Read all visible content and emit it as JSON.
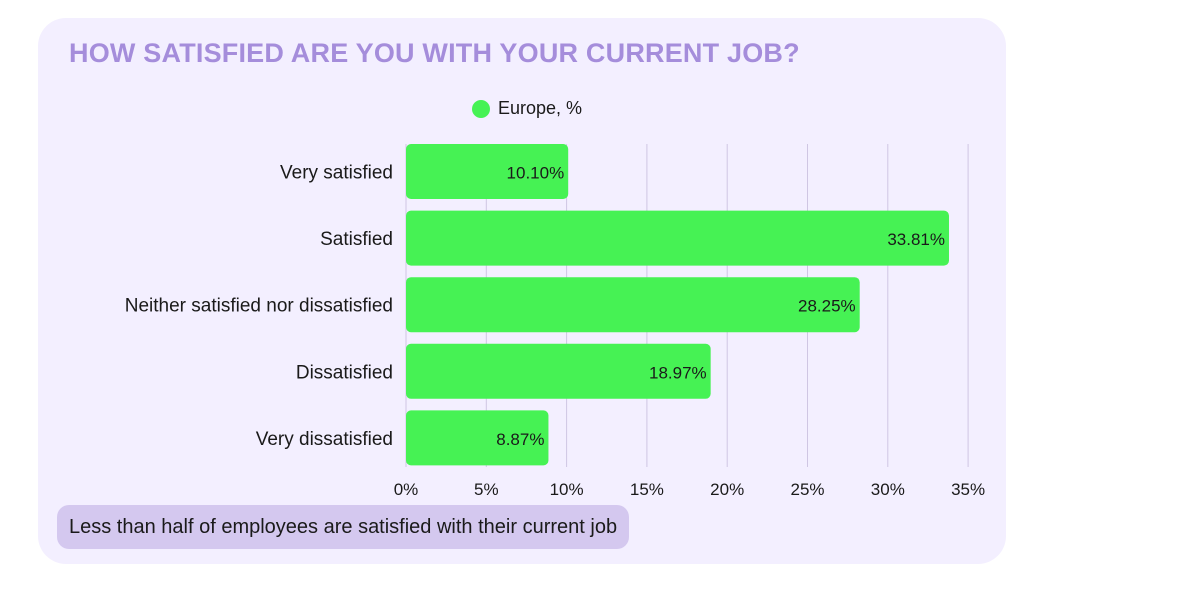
{
  "colors": {
    "card_background": "#f3efff",
    "title": "#a58ddb",
    "bar": "#46f254",
    "grid": "#cfc6e3",
    "note_background": "#d4c8ef",
    "text": "#1a1a1a"
  },
  "chart_data": {
    "type": "bar",
    "orientation": "horizontal",
    "title": "HOW SATISFIED ARE YOU WITH YOUR CURRENT JOB?",
    "categories": [
      "Very satisfied",
      "Satisfied",
      "Neither satisfied nor dissatisfied",
      "Dissatisfied",
      "Very dissatisfied"
    ],
    "series": [
      {
        "name": "Europe, %",
        "values": [
          10.1,
          33.81,
          28.25,
          18.97,
          8.87
        ],
        "data_labels": [
          "10.10%",
          "33.81%",
          "28.25%",
          "18.97%",
          "8.87%"
        ]
      }
    ],
    "xlim": [
      0,
      35
    ],
    "x_ticks": [
      0,
      5,
      10,
      15,
      20,
      25,
      30,
      35
    ],
    "x_tick_labels": [
      "0%",
      "5%",
      "10%",
      "15%",
      "20%",
      "25%",
      "30%",
      "35%"
    ],
    "grid": true,
    "legend_position": "top-center",
    "annotation": "Less than half of employees are satisfied with their current job"
  }
}
